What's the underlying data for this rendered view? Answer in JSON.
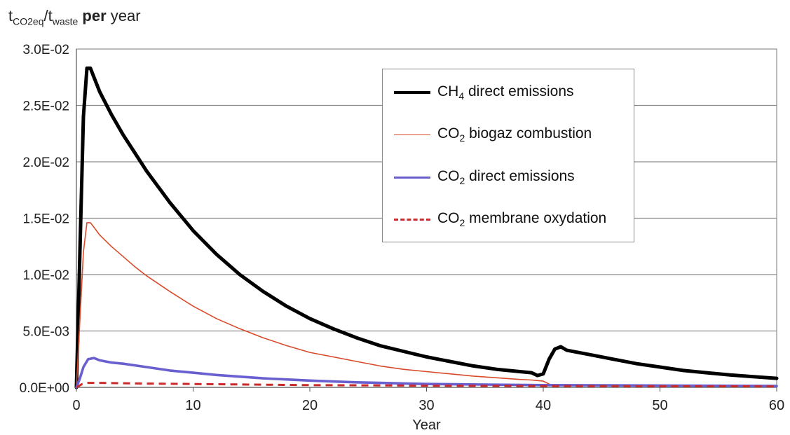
{
  "chart_data": {
    "type": "line",
    "ylabel_parts": {
      "base1": "t",
      "sub1": "CO2eq",
      "sep": "/t",
      "sub2": "waste",
      "suffix_bold": " per",
      "suffix": " year"
    },
    "xlabel": "Year",
    "xlim": [
      0,
      60
    ],
    "ylim": [
      0,
      0.03
    ],
    "x_ticks": [
      0,
      10,
      20,
      30,
      40,
      50,
      60
    ],
    "x_tick_labels": [
      "0",
      "10",
      "20",
      "30",
      "40",
      "50",
      "60"
    ],
    "y_ticks": [
      0,
      0.005,
      0.01,
      0.015,
      0.02,
      0.025,
      0.03
    ],
    "y_tick_labels": [
      "0.0E+00",
      "5.0E-03",
      "1.0E-02",
      "1.5E-02",
      "2.0E-02",
      "2.5E-02",
      "3.0E-02"
    ],
    "grid": "horizontal",
    "legend_position": "top-right",
    "series": [
      {
        "name_main": "CH",
        "name_sub": "4",
        "name_rest": " direct emissions",
        "color": "#000000",
        "style": "solid",
        "x": [
          0,
          0.3,
          0.6,
          0.9,
          1.2,
          1.5,
          2,
          3,
          4,
          5,
          6,
          8,
          10,
          12,
          14,
          16,
          18,
          20,
          22,
          24,
          26,
          28,
          30,
          32,
          34,
          36,
          38,
          39,
          39.5,
          40,
          40.5,
          41,
          41.5,
          42,
          44,
          46,
          48,
          50,
          52,
          54,
          56,
          58,
          60
        ],
        "y": [
          0,
          0.012,
          0.024,
          0.0283,
          0.0283,
          0.0275,
          0.0262,
          0.0242,
          0.0224,
          0.0208,
          0.0192,
          0.0164,
          0.0139,
          0.0118,
          0.01,
          0.0085,
          0.0072,
          0.0061,
          0.0052,
          0.0044,
          0.0037,
          0.0032,
          0.0027,
          0.0023,
          0.0019,
          0.0016,
          0.0014,
          0.0013,
          0.00105,
          0.0012,
          0.0025,
          0.0034,
          0.0036,
          0.0033,
          0.0029,
          0.0025,
          0.0021,
          0.0018,
          0.0015,
          0.0013,
          0.0011,
          0.00095,
          0.0008
        ]
      },
      {
        "name_main": "CO",
        "name_sub": "2",
        "name_rest": " biogaz combustion",
        "color": "#d94a2b",
        "style": "solid",
        "x": [
          0,
          0.3,
          0.6,
          0.9,
          1.2,
          1.5,
          2,
          3,
          4,
          5,
          6,
          8,
          10,
          12,
          14,
          16,
          18,
          20,
          22,
          24,
          26,
          28,
          30,
          32,
          34,
          36,
          38,
          39,
          40,
          40.5,
          41
        ],
        "y": [
          0,
          0.006,
          0.012,
          0.0146,
          0.0146,
          0.0142,
          0.0135,
          0.0125,
          0.0116,
          0.0107,
          0.0099,
          0.0085,
          0.0072,
          0.0061,
          0.0052,
          0.0044,
          0.0037,
          0.0031,
          0.0027,
          0.0023,
          0.0019,
          0.0016,
          0.0014,
          0.0012,
          0.001,
          0.00085,
          0.0007,
          0.00065,
          0.00055,
          0.0003,
          0.0001
        ]
      },
      {
        "name_main": "CO",
        "name_sub": "2",
        "name_rest": " direct emissions",
        "color": "#6a5fcf",
        "style": "solid",
        "x": [
          0,
          0.3,
          0.6,
          1,
          1.5,
          2,
          3,
          4,
          6,
          8,
          10,
          12,
          14,
          16,
          18,
          20,
          22,
          24,
          26,
          28,
          30,
          35,
          40,
          45,
          50,
          55,
          60
        ],
        "y": [
          0,
          0.0008,
          0.0018,
          0.0025,
          0.0026,
          0.0024,
          0.0022,
          0.0021,
          0.0018,
          0.0015,
          0.0013,
          0.0011,
          0.00095,
          0.0008,
          0.0007,
          0.0006,
          0.00052,
          0.00045,
          0.0004,
          0.00035,
          0.0003,
          0.00025,
          0.0002,
          0.00018,
          0.00016,
          0.00014,
          0.00012
        ]
      },
      {
        "name_main": "CO",
        "name_sub": "2",
        "name_rest": " membrane oxydation",
        "color": "#c92a2a",
        "style": "dashed",
        "x": [
          0,
          0.5,
          1,
          2,
          5,
          10,
          15,
          20,
          25,
          30,
          40,
          50,
          60
        ],
        "y": [
          0,
          0.0003,
          0.0004,
          0.0004,
          0.00035,
          0.0003,
          0.00025,
          0.0002,
          0.00018,
          0.00015,
          0.00012,
          0.0001,
          9e-05
        ]
      }
    ]
  }
}
